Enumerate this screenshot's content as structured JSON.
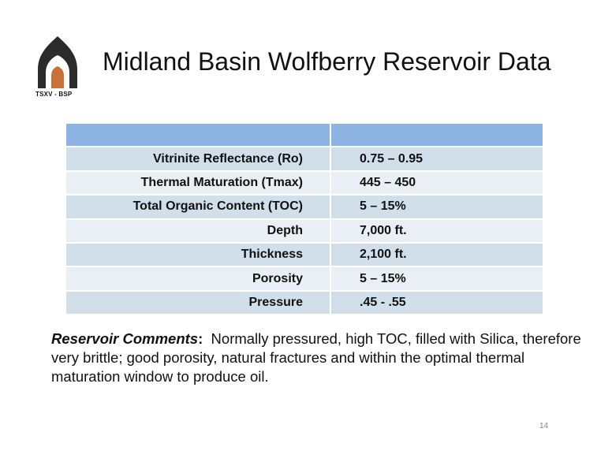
{
  "header": {
    "logo_caption": "TSXV - BSP",
    "title": "Midland Basin Wolfberry Reservoir Data"
  },
  "table": {
    "rows": [
      {
        "label": "Vitrinite Reflectance (Ro)",
        "value": "0.75 – 0.95"
      },
      {
        "label": "Thermal Maturation (Tmax)",
        "value": "445 – 450"
      },
      {
        "label": "Total Organic Content (TOC)",
        "value": "5 – 15%"
      },
      {
        "label": "Depth",
        "value": "7,000 ft."
      },
      {
        "label": "Thickness",
        "value": "2,100 ft."
      },
      {
        "label": "Porosity",
        "value": "5 – 15%"
      },
      {
        "label": "Pressure",
        "value": ".45 - .55"
      }
    ]
  },
  "comments": {
    "lead": "Reservoir Comments",
    "colon": ":",
    "body": "  Normally pressured, high TOC, filled with Silica, therefore very brittle; good porosity, natural fractures and within the optimal thermal maturation window to produce oil."
  },
  "footer": {
    "page_number": "14"
  },
  "colors": {
    "header_row": "#8db3e2",
    "row_odd": "#d0dfea",
    "row_even": "#e9eff4",
    "logo_dark": "#2b2b2b",
    "logo_door": "#c8713a"
  }
}
